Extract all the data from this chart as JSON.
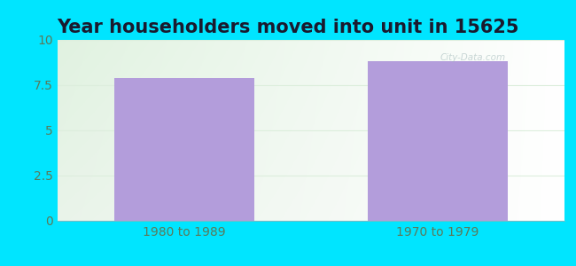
{
  "title": "Year householders moved into unit in 15625",
  "categories": [
    "1980 to 1989",
    "1970 to 1979"
  ],
  "values": [
    7.9,
    8.8
  ],
  "bar_color": "#b39ddb",
  "background_color": "#00e5ff",
  "ylim": [
    0,
    10
  ],
  "yticks": [
    0,
    2.5,
    5,
    7.5,
    10
  ],
  "ytick_labels": [
    "0",
    "2.5",
    "5",
    "7.5",
    "10"
  ],
  "title_fontsize": 15,
  "tick_fontsize": 10,
  "title_color": "#1a1a2e",
  "tick_color": "#5a7a5a",
  "grid_color": "#e0ead0",
  "watermark": "City-Data.com",
  "bar_width": 0.55
}
